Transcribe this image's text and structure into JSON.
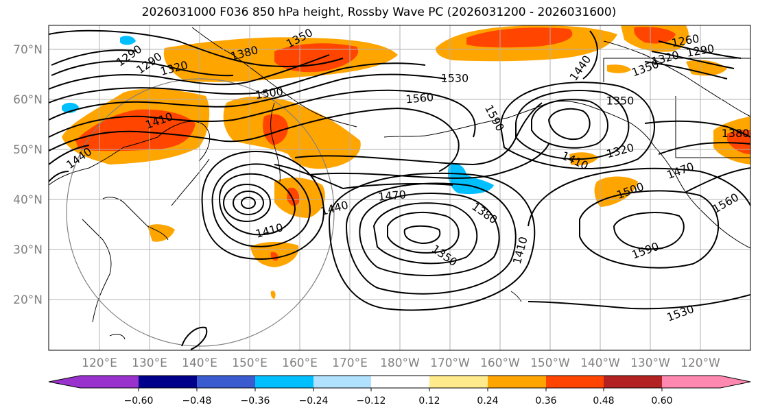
{
  "title": "2026031000 F036 850 hPa height, Rossby Wave PC (2026031200 - 2026031600)",
  "lat_labels": [
    "70°N",
    "60°N",
    "50°N",
    "40°N",
    "30°N",
    "20°N"
  ],
  "lon_labels": [
    "120°E",
    "130°E",
    "140°E",
    "150°E",
    "160°E",
    "170°E",
    "180°W",
    "170°W",
    "160°W",
    "150°W",
    "140°W",
    "130°W",
    "120°W"
  ],
  "colorbar": {
    "ticks": [
      "−0.60",
      "−0.48",
      "−0.36",
      "−0.24",
      "−0.12",
      "0.12",
      "0.24",
      "0.36",
      "0.48",
      "0.60"
    ],
    "colors": [
      "#9932cc",
      "#00008b",
      "#3a5bd0",
      "#00bfff",
      "#b0e2ff",
      "#ffffff",
      "#ffeb8c",
      "#ffa500",
      "#ff4500",
      "#b22222",
      "#ff88b0"
    ]
  },
  "contour_labels": [
    {
      "text": "1350",
      "lon": 160,
      "lat": 72.5,
      "rot": -28
    },
    {
      "text": "1380",
      "lon": 149,
      "lat": 69.5,
      "rot": -15
    },
    {
      "text": "1290",
      "lon": 126,
      "lat": 69,
      "rot": -35
    },
    {
      "text": "1290",
      "lon": 130,
      "lat": 67.5,
      "rot": -35
    },
    {
      "text": "1320",
      "lon": 135,
      "lat": 66.5,
      "rot": -15
    },
    {
      "text": "1530",
      "lon": -169,
      "lat": 64.5,
      "rot": 0
    },
    {
      "text": "1500",
      "lon": 154,
      "lat": 61.5,
      "rot": -8
    },
    {
      "text": "1560",
      "lon": -176,
      "lat": 60.5,
      "rot": -5
    },
    {
      "text": "1410",
      "lon": 132,
      "lat": 56,
      "rot": -20
    },
    {
      "text": "1590",
      "lon": -161,
      "lat": 56.5,
      "rot": 62
    },
    {
      "text": "1350",
      "lon": -136,
      "lat": 60,
      "rot": 0
    },
    {
      "text": "1440",
      "lon": -144,
      "lat": 66.5,
      "rot": -55
    },
    {
      "text": "1260",
      "lon": -123,
      "lat": 72,
      "rot": -10
    },
    {
      "text": "1290",
      "lon": -120,
      "lat": 70,
      "rot": -10
    },
    {
      "text": "1320",
      "lon": -127,
      "lat": 68.5,
      "rot": -15
    },
    {
      "text": "1350",
      "lon": -131,
      "lat": 66.5,
      "rot": -20
    },
    {
      "text": "1380",
      "lon": -113,
      "lat": 53.5,
      "rot": 0
    },
    {
      "text": "1320",
      "lon": -136,
      "lat": 50,
      "rot": -15
    },
    {
      "text": "1410",
      "lon": -145,
      "lat": 48,
      "rot": 25
    },
    {
      "text": "1470",
      "lon": -124,
      "lat": 46,
      "rot": -20
    },
    {
      "text": "1500",
      "lon": -134,
      "lat": 42,
      "rot": -20
    },
    {
      "text": "1560",
      "lon": -115,
      "lat": 39.5,
      "rot": -30
    },
    {
      "text": "1440",
      "lon": 116,
      "lat": 48.5,
      "rot": -35
    },
    {
      "text": "1470",
      "lon": 178.5,
      "lat": 41,
      "rot": -5
    },
    {
      "text": "1440",
      "lon": 167,
      "lat": 38.5,
      "rot": -15
    },
    {
      "text": "1410",
      "lon": 154,
      "lat": 34,
      "rot": -15
    },
    {
      "text": "1380",
      "lon": -163,
      "lat": 37.5,
      "rot": 35
    },
    {
      "text": "1410",
      "lon": -156,
      "lat": 30,
      "rot": -75
    },
    {
      "text": "1350",
      "lon": -171,
      "lat": 29,
      "rot": 35
    },
    {
      "text": "1590",
      "lon": -131,
      "lat": 30,
      "rot": -20
    },
    {
      "text": "1530",
      "lon": -124,
      "lat": 17.5,
      "rot": -20
    }
  ]
}
